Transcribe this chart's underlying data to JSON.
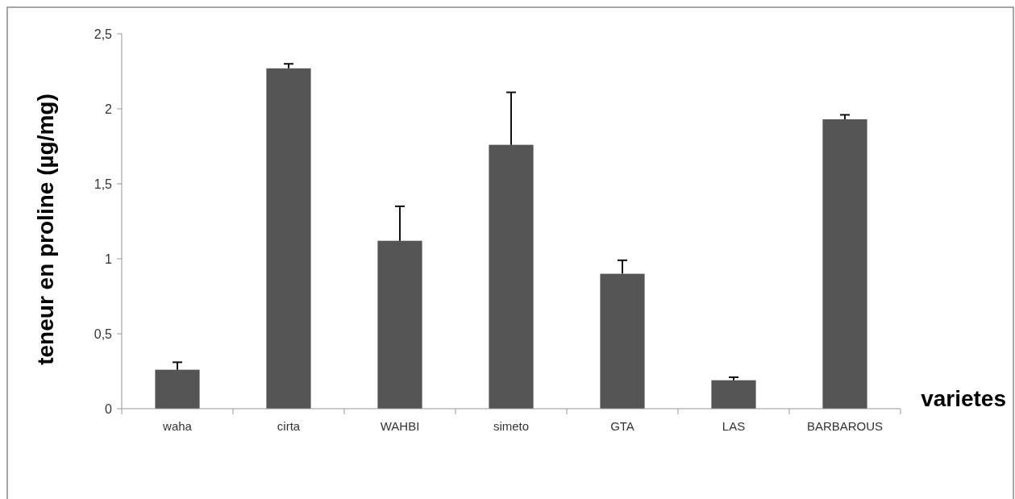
{
  "chart_data": {
    "type": "bar",
    "xlabel": "varietes",
    "ylabel": "teneur en proline (µg/mg)",
    "categories": [
      "waha",
      "cirta",
      "WAHBI",
      "simeto",
      "GTA",
      "LAS",
      "BARBAROUS"
    ],
    "values": [
      0.26,
      2.27,
      1.12,
      1.76,
      0.9,
      0.19,
      1.93
    ],
    "errors": [
      0.05,
      0.03,
      0.23,
      0.35,
      0.09,
      0.02,
      0.03
    ],
    "color": "#555555",
    "ylim": [
      0,
      2.5
    ],
    "yticks": [
      {
        "value": 0,
        "label": "0"
      },
      {
        "value": 0.5,
        "label": "0,5"
      },
      {
        "value": 1,
        "label": "1"
      },
      {
        "value": 1.5,
        "label": "1,5"
      },
      {
        "value": 2,
        "label": "2"
      },
      {
        "value": 2.5,
        "label": "2,5"
      }
    ],
    "grid": false
  }
}
